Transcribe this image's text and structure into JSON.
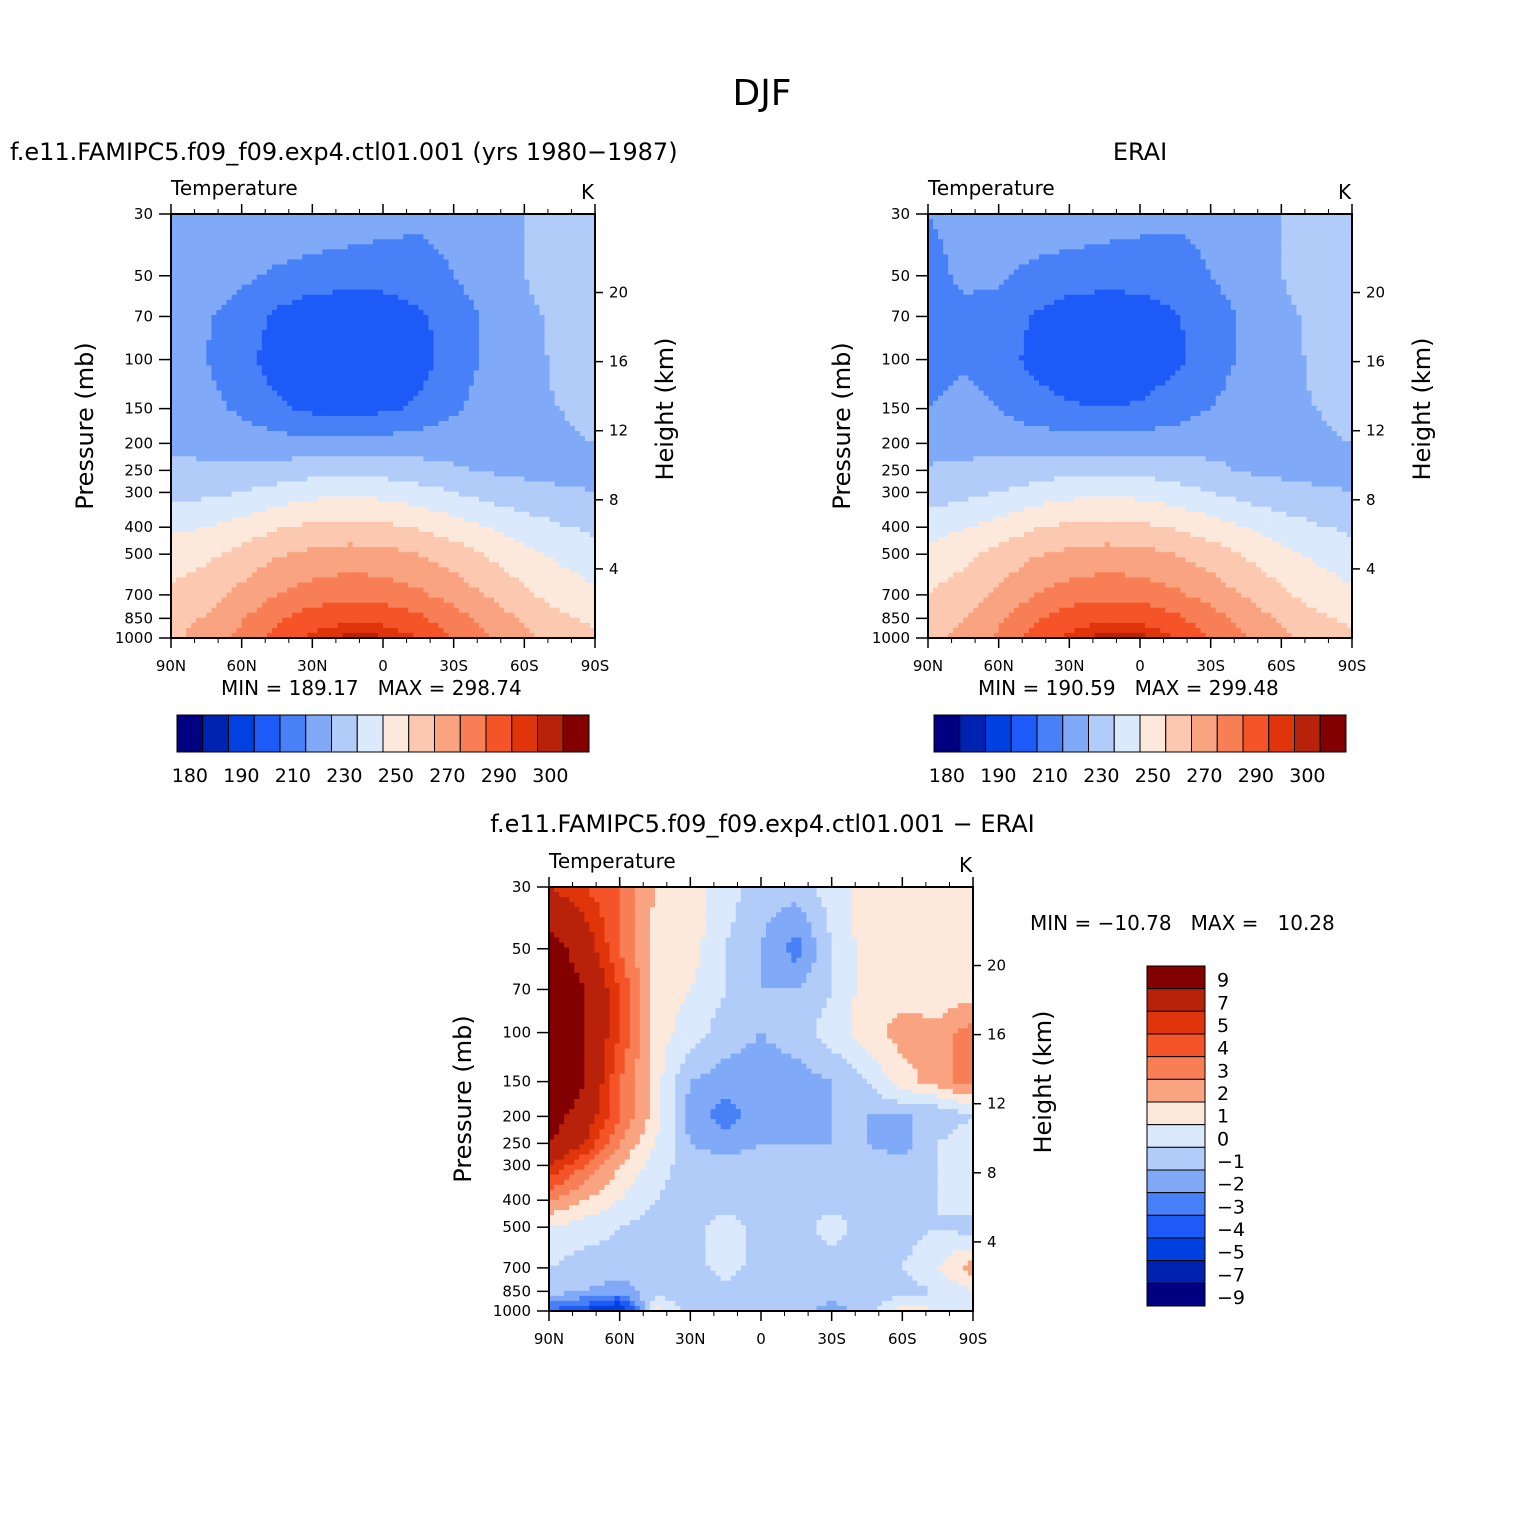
{
  "title": "DJF",
  "colors": {
    "abs_scale": [
      "#000080",
      "#0022b0",
      "#0040e0",
      "#1e5af7",
      "#4880f8",
      "#80aaf8",
      "#b2ccfa",
      "#dbe9fc",
      "#fde9dc",
      "#fcc9b0",
      "#f9a381",
      "#f87e56",
      "#f45428",
      "#e0340a",
      "#b8220a",
      "#820000"
    ],
    "diff_scale": [
      "#000080",
      "#0022b0",
      "#0040e0",
      "#1e5af7",
      "#4880f8",
      "#80aaf8",
      "#b2ccfa",
      "#dbe9fc",
      "#fde9dc",
      "#f9a381",
      "#f87e56",
      "#f45428",
      "#e0340a",
      "#b8220a",
      "#820000"
    ]
  },
  "panels": {
    "model": {
      "title": "f.e11.FAMIPC5.f09_f09.exp4.ctl01.001 (yrs 1980−1987)",
      "var_label": "Temperature",
      "units": "K",
      "stats": "MIN = 189.17   MAX = 298.74"
    },
    "obs": {
      "title": "ERAI",
      "var_label": "Temperature",
      "units": "K",
      "stats": "MIN = 190.59   MAX = 299.48"
    },
    "diff": {
      "title": "f.e11.FAMIPC5.f09_f09.exp4.ctl01.001 − ERAI",
      "var_label": "Temperature",
      "units": "K",
      "stats": "MIN = −10.78   MAX =   10.28"
    }
  },
  "axes": {
    "ylabel": "Pressure (mb)",
    "y2label": "Height (km)",
    "pressure_ticks": [
      "30",
      "50",
      "70",
      "100",
      "150",
      "200",
      "250",
      "300",
      "400",
      "500",
      "700",
      "850",
      "1000"
    ],
    "height_ticks": [
      "20",
      "16",
      "12",
      "8",
      "4"
    ],
    "lat_ticks": [
      "90N",
      "60N",
      "30N",
      "0",
      "30S",
      "60S",
      "90S"
    ]
  },
  "colorbars": {
    "abs_labels": [
      "180",
      "190",
      "210",
      "230",
      "250",
      "270",
      "290",
      "300"
    ],
    "diff_labels": [
      "9",
      "7",
      "5",
      "4",
      "3",
      "2",
      "1",
      "0",
      "−1",
      "−2",
      "−3",
      "−4",
      "−5",
      "−7",
      "−9"
    ]
  },
  "chart_data": [
    {
      "type": "heatmap",
      "title": "f.e11.FAMIPC5.f09_f09.exp4.ctl01.001 (yrs 1980−1987)",
      "xlabel": "",
      "ylabel": "Pressure (mb)",
      "y2label": "Height (km)",
      "x_categories": [
        "90N",
        "60N",
        "30N",
        "0",
        "30S",
        "60S",
        "90S"
      ],
      "y_pressure_mb": [
        30,
        50,
        70,
        100,
        150,
        200,
        250,
        300,
        400,
        500,
        700,
        850,
        1000
      ],
      "values_K": [
        [
          215,
          216,
          218,
          220,
          219,
          217,
          214,
          212,
          213,
          216,
          220,
          225,
          228
        ],
        [
          213,
          214,
          212,
          208,
          205,
          204,
          204,
          206,
          210,
          215,
          220,
          224,
          226
        ],
        [
          212,
          211,
          206,
          198,
          194,
          193,
          194,
          198,
          205,
          212,
          218,
          222,
          224
        ],
        [
          210,
          210,
          204,
          195,
          191,
          190,
          191,
          196,
          204,
          212,
          218,
          221,
          223
        ],
        [
          214,
          213,
          208,
          202,
          198,
          197,
          198,
          202,
          208,
          215,
          219,
          220,
          222
        ],
        [
          218,
          217,
          216,
          214,
          213,
          213,
          214,
          215,
          217,
          218,
          219,
          219,
          220
        ],
        [
          222,
          222,
          222,
          224,
          226,
          227,
          226,
          224,
          221,
          219,
          218,
          218,
          219
        ],
        [
          226,
          228,
          230,
          234,
          237,
          238,
          237,
          234,
          230,
          226,
          223,
          221,
          220
        ],
        [
          238,
          240,
          244,
          249,
          252,
          253,
          252,
          249,
          245,
          240,
          235,
          231,
          228
        ],
        [
          245,
          248,
          253,
          259,
          262,
          264,
          263,
          260,
          255,
          249,
          243,
          238,
          234
        ],
        [
          252,
          256,
          263,
          270,
          275,
          277,
          276,
          272,
          266,
          259,
          252,
          246,
          242
        ],
        [
          256,
          261,
          269,
          278,
          285,
          288,
          287,
          282,
          274,
          266,
          258,
          252,
          248
        ],
        [
          258,
          264,
          273,
          283,
          292,
          297,
          296,
          290,
          280,
          270,
          262,
          256,
          252
        ]
      ],
      "colorbar": [
        "180",
        "190",
        "210",
        "230",
        "250",
        "270",
        "290",
        "300"
      ],
      "min": 189.17,
      "max": 298.74
    },
    {
      "type": "heatmap",
      "title": "ERAI",
      "xlabel": "",
      "ylabel": "Pressure (mb)",
      "y2label": "Height (km)",
      "x_categories": [
        "90N",
        "60N",
        "30N",
        "0",
        "30S",
        "60S",
        "90S"
      ],
      "y_pressure_mb": [
        30,
        50,
        70,
        100,
        150,
        200,
        250,
        300,
        400,
        500,
        700,
        850,
        1000
      ],
      "values_K": [
        [
          210,
          212,
          215,
          218,
          218,
          216,
          214,
          212,
          213,
          216,
          220,
          224,
          228
        ],
        [
          208,
          211,
          212,
          207,
          204,
          203,
          203,
          205,
          210,
          215,
          220,
          224,
          226
        ],
        [
          206,
          209,
          206,
          199,
          196,
          195,
          196,
          199,
          205,
          212,
          218,
          222,
          224
        ],
        [
          205,
          209,
          205,
          197,
          194,
          193,
          194,
          198,
          205,
          212,
          218,
          221,
          223
        ],
        [
          210,
          213,
          210,
          204,
          201,
          200,
          201,
          205,
          210,
          215,
          219,
          220,
          222
        ],
        [
          216,
          217,
          217,
          216,
          215,
          215,
          215,
          216,
          217,
          218,
          219,
          219,
          220
        ],
        [
          221,
          222,
          223,
          225,
          227,
          228,
          227,
          225,
          222,
          219,
          218,
          218,
          219
        ],
        [
          225,
          227,
          230,
          234,
          237,
          238,
          237,
          234,
          230,
          226,
          223,
          221,
          220
        ],
        [
          236,
          239,
          244,
          249,
          252,
          253,
          252,
          249,
          245,
          240,
          235,
          231,
          228
        ],
        [
          243,
          247,
          253,
          259,
          262,
          264,
          263,
          260,
          255,
          249,
          243,
          238,
          234
        ],
        [
          250,
          255,
          262,
          270,
          275,
          277,
          276,
          272,
          266,
          259,
          252,
          246,
          242
        ],
        [
          254,
          260,
          268,
          278,
          285,
          289,
          288,
          282,
          274,
          266,
          258,
          252,
          248
        ],
        [
          256,
          263,
          272,
          283,
          292,
          298,
          297,
          290,
          280,
          270,
          262,
          256,
          252
        ]
      ],
      "colorbar": [
        "180",
        "190",
        "210",
        "230",
        "250",
        "270",
        "290",
        "300"
      ],
      "min": 190.59,
      "max": 299.48
    },
    {
      "type": "heatmap",
      "title": "f.e11.FAMIPC5.f09_f09.exp4.ctl01.001 − ERAI",
      "xlabel": "",
      "ylabel": "Pressure (mb)",
      "y2label": "Height (km)",
      "x_categories": [
        "90N",
        "60N",
        "30N",
        "0",
        "30S",
        "60S",
        "90S"
      ],
      "y_pressure_mb": [
        30,
        50,
        70,
        100,
        150,
        200,
        250,
        300,
        400,
        500,
        700,
        850,
        1000
      ],
      "values_K": [
        [
          5,
          4,
          3,
          1,
          0.5,
          -0.5,
          -1.5,
          -1.5,
          -0.5,
          0.5,
          0.5,
          0.5,
          0.5
        ],
        [
          8,
          6,
          3,
          0.5,
          0.5,
          -1,
          -2,
          -3.5,
          -1,
          0.5,
          0.5,
          0,
          0.5
        ],
        [
          9,
          7,
          4,
          0.5,
          0,
          -1,
          -2,
          -2,
          -1,
          0.5,
          0.5,
          0,
          0.5
        ],
        [
          10,
          7,
          4,
          0.5,
          -0.5,
          -1.5,
          -2,
          -1.5,
          -0.5,
          0.5,
          1.5,
          1.5,
          2.5
        ],
        [
          10,
          7,
          3,
          0.5,
          -2,
          -2.5,
          -2.5,
          -2.5,
          -2,
          -1,
          0.5,
          1.5,
          2.5
        ],
        [
          8,
          6,
          3,
          0.5,
          -2.5,
          -3.5,
          -2.5,
          -2.5,
          -2,
          -2,
          -2,
          -2,
          -1
        ],
        [
          7,
          5,
          2,
          0,
          -2,
          -2.5,
          -2,
          -2,
          -2,
          -2,
          -2.5,
          -1,
          0
        ],
        [
          5,
          3,
          1,
          -0.5,
          -1.5,
          -1.5,
          -1.5,
          -1.5,
          -1.5,
          -1.5,
          -1.5,
          -1,
          -0.5
        ],
        [
          2,
          1,
          0,
          -1,
          -1.5,
          -1.5,
          -1.5,
          -1.5,
          -1.5,
          -1.5,
          -1.5,
          -1,
          -0.5
        ],
        [
          0,
          -0.5,
          -1,
          -1.5,
          -1.5,
          -0.5,
          -1.5,
          -1.5,
          -0.5,
          -1.5,
          -1.5,
          -1,
          -1.5
        ],
        [
          -1,
          -1.5,
          -1.5,
          -1.5,
          -1.5,
          -0.5,
          -1.5,
          -1.5,
          -1.5,
          -1.5,
          -1,
          0,
          1.5
        ],
        [
          -1.5,
          -2,
          -2.5,
          -1.5,
          -1.5,
          -1.5,
          -1.5,
          -1.5,
          -1.5,
          -1.5,
          -1.5,
          -1,
          0
        ],
        [
          -4,
          -5,
          -7,
          0.5,
          -1.5,
          -1.5,
          -1.5,
          -1.5,
          -2.5,
          -1.5,
          0.5,
          0,
          -1
        ]
      ],
      "colorbar": [
        "9",
        "7",
        "5",
        "4",
        "3",
        "2",
        "1",
        "0",
        "−1",
        "−2",
        "−3",
        "−4",
        "−5",
        "−7",
        "−9"
      ],
      "min": -10.78,
      "max": 10.28
    }
  ]
}
